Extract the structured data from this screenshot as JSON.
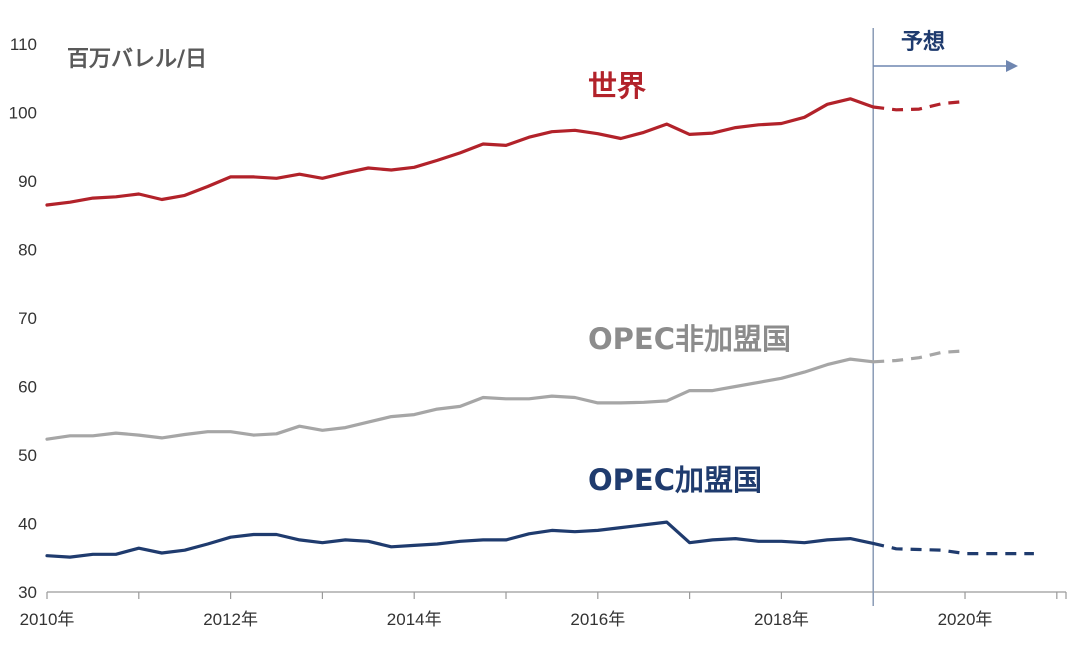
{
  "chart_data": {
    "type": "line",
    "unit_label": "百万バレル/日",
    "x_tick_labels": [
      "2010年",
      "2012年",
      "2014年",
      "2016年",
      "2018年",
      "2020年"
    ],
    "x_ticks": [
      2010,
      2012,
      2014,
      2016,
      2018,
      2020
    ],
    "xlim": [
      2010,
      2021.1
    ],
    "y_ticks": [
      30,
      40,
      50,
      60,
      70,
      80,
      90,
      100,
      110
    ],
    "ylim": [
      30,
      110
    ],
    "grid": false,
    "forecast": {
      "label": "予想",
      "start": 2019.0,
      "color": "#1f3b6e"
    },
    "series": [
      {
        "name": "世界",
        "color": "#b2222a",
        "x": [
          2010.0,
          2010.25,
          2010.5,
          2010.75,
          2011.0,
          2011.25,
          2011.5,
          2011.75,
          2012.0,
          2012.25,
          2012.5,
          2012.75,
          2013.0,
          2013.25,
          2013.5,
          2013.75,
          2014.0,
          2014.25,
          2014.5,
          2014.75,
          2015.0,
          2015.25,
          2015.5,
          2015.75,
          2016.0,
          2016.25,
          2016.5,
          2016.75,
          2017.0,
          2017.25,
          2017.5,
          2017.75,
          2018.0,
          2018.25,
          2018.5,
          2018.75,
          2019.0
        ],
        "values": [
          86.5,
          86.9,
          87.5,
          87.7,
          88.1,
          87.3,
          87.9,
          89.2,
          90.6,
          90.6,
          90.4,
          91.0,
          90.4,
          91.2,
          91.9,
          91.6,
          92.0,
          93.0,
          94.1,
          95.4,
          95.2,
          96.4,
          97.2,
          97.4,
          96.9,
          96.2,
          97.1,
          98.3,
          96.8,
          97.0,
          97.8,
          98.2,
          98.4,
          99.3,
          101.2,
          102.0,
          100.8
        ],
        "forecast_x": [
          2019.0,
          2019.25,
          2019.5,
          2019.75,
          2020.0
        ],
        "forecast_values": [
          100.8,
          100.4,
          100.5,
          101.3,
          101.6
        ]
      },
      {
        "name": "OPEC非加盟国",
        "color": "#a6a6a6",
        "x": [
          2010.0,
          2010.25,
          2010.5,
          2010.75,
          2011.0,
          2011.25,
          2011.5,
          2011.75,
          2012.0,
          2012.25,
          2012.5,
          2012.75,
          2013.0,
          2013.25,
          2013.5,
          2013.75,
          2014.0,
          2014.25,
          2014.5,
          2014.75,
          2015.0,
          2015.25,
          2015.5,
          2015.75,
          2016.0,
          2016.25,
          2016.5,
          2016.75,
          2017.0,
          2017.25,
          2017.5,
          2017.75,
          2018.0,
          2018.25,
          2018.5,
          2018.75,
          2019.0
        ],
        "values": [
          52.3,
          52.8,
          52.8,
          53.2,
          52.9,
          52.5,
          53.0,
          53.4,
          53.4,
          52.9,
          53.1,
          54.2,
          53.6,
          54.0,
          54.8,
          55.6,
          55.9,
          56.7,
          57.1,
          58.4,
          58.2,
          58.2,
          58.6,
          58.4,
          57.6,
          57.6,
          57.7,
          57.9,
          59.4,
          59.4,
          60.0,
          60.6,
          61.2,
          62.1,
          63.2,
          64.0,
          63.6
        ],
        "forecast_x": [
          2019.0,
          2019.25,
          2019.5,
          2019.75,
          2020.0
        ],
        "forecast_values": [
          63.6,
          63.8,
          64.2,
          65.0,
          65.2
        ]
      },
      {
        "name": "OPEC加盟国",
        "color": "#1f3b6e",
        "x": [
          2010.0,
          2010.25,
          2010.5,
          2010.75,
          2011.0,
          2011.25,
          2011.5,
          2011.75,
          2012.0,
          2012.25,
          2012.5,
          2012.75,
          2013.0,
          2013.25,
          2013.5,
          2013.75,
          2014.0,
          2014.25,
          2014.5,
          2014.75,
          2015.0,
          2015.25,
          2015.5,
          2015.75,
          2016.0,
          2016.25,
          2016.5,
          2016.75,
          2017.0,
          2017.25,
          2017.5,
          2017.75,
          2018.0,
          2018.25,
          2018.5,
          2018.75,
          2019.0
        ],
        "values": [
          35.3,
          35.1,
          35.5,
          35.5,
          36.4,
          35.7,
          36.1,
          37.0,
          38.0,
          38.4,
          38.4,
          37.6,
          37.2,
          37.6,
          37.4,
          36.6,
          36.8,
          37.0,
          37.4,
          37.6,
          37.6,
          38.5,
          39.0,
          38.8,
          39.0,
          39.4,
          39.8,
          40.2,
          37.2,
          37.6,
          37.8,
          37.4,
          37.4,
          37.2,
          37.6,
          37.8,
          37.1
        ],
        "forecast_x": [
          2019.0,
          2019.25,
          2019.5,
          2019.75,
          2020.0,
          2020.25,
          2020.5,
          2020.75
        ],
        "forecast_values": [
          37.1,
          36.3,
          36.2,
          36.1,
          35.6,
          35.6,
          35.6,
          35.6
        ]
      }
    ]
  }
}
